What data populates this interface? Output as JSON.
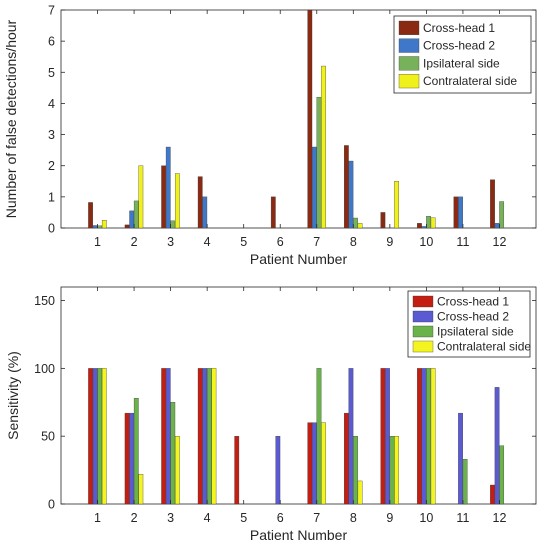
{
  "chart_data": [
    {
      "type": "bar",
      "title": "",
      "xlabel": "Patient Number",
      "ylabel": "Number of false detections/hour",
      "ylim": [
        0,
        7
      ],
      "yticks": [
        0,
        1,
        2,
        3,
        4,
        5,
        6,
        7
      ],
      "grid": false,
      "legend_position": "top-right",
      "categories": [
        "1",
        "2",
        "3",
        "4",
        "5",
        "6",
        "7",
        "8",
        "9",
        "10",
        "11",
        "12"
      ],
      "series": [
        {
          "name": "Cross-head 1",
          "color": "#8b2a12",
          "values": [
            0.82,
            0.1,
            2.0,
            1.65,
            0,
            1.0,
            7.0,
            2.65,
            0.5,
            0.15,
            1.0,
            1.55
          ]
        },
        {
          "name": "Cross-head 2",
          "color": "#3f78c9",
          "values": [
            0.08,
            0.55,
            2.6,
            1.0,
            0,
            0,
            2.6,
            2.15,
            0,
            0.05,
            1.0,
            0.15
          ]
        },
        {
          "name": "Ipsilateral side",
          "color": "#77b25a",
          "values": [
            0.07,
            0.87,
            0.23,
            0,
            0,
            0,
            4.2,
            0.32,
            0,
            0.38,
            0,
            0.85
          ]
        },
        {
          "name": "Contralateral side",
          "color": "#f0f01a",
          "values": [
            0.25,
            2.0,
            1.75,
            0,
            0,
            0,
            5.2,
            0.15,
            1.5,
            0.33,
            0,
            0
          ]
        }
      ]
    },
    {
      "type": "bar",
      "title": "",
      "xlabel": "Patient Number",
      "ylabel": "Sensitivity (%)",
      "ylim": [
        0,
        160
      ],
      "yticks": [
        0,
        50,
        100,
        150
      ],
      "grid": false,
      "legend_position": "top-right",
      "categories": [
        "1",
        "2",
        "3",
        "4",
        "5",
        "6",
        "7",
        "8",
        "9",
        "10",
        "11",
        "12"
      ],
      "series": [
        {
          "name": "Cross-head 1",
          "color": "#c41e12",
          "values": [
            100,
            67,
            100,
            100,
            50,
            0,
            60,
            67,
            100,
            100,
            0,
            14
          ]
        },
        {
          "name": "Cross-head 2",
          "color": "#5a5ad2",
          "values": [
            100,
            67,
            100,
            100,
            0,
            50,
            60,
            100,
            100,
            100,
            67,
            86
          ]
        },
        {
          "name": "Ipsilateral side",
          "color": "#6ab24a",
          "values": [
            100,
            78,
            75,
            100,
            0,
            0,
            100,
            50,
            50,
            100,
            33,
            43
          ]
        },
        {
          "name": "Contralateral side",
          "color": "#f4f41e",
          "values": [
            100,
            22,
            50,
            100,
            0,
            0,
            60,
            17,
            50,
            100,
            0,
            0
          ]
        }
      ]
    }
  ]
}
